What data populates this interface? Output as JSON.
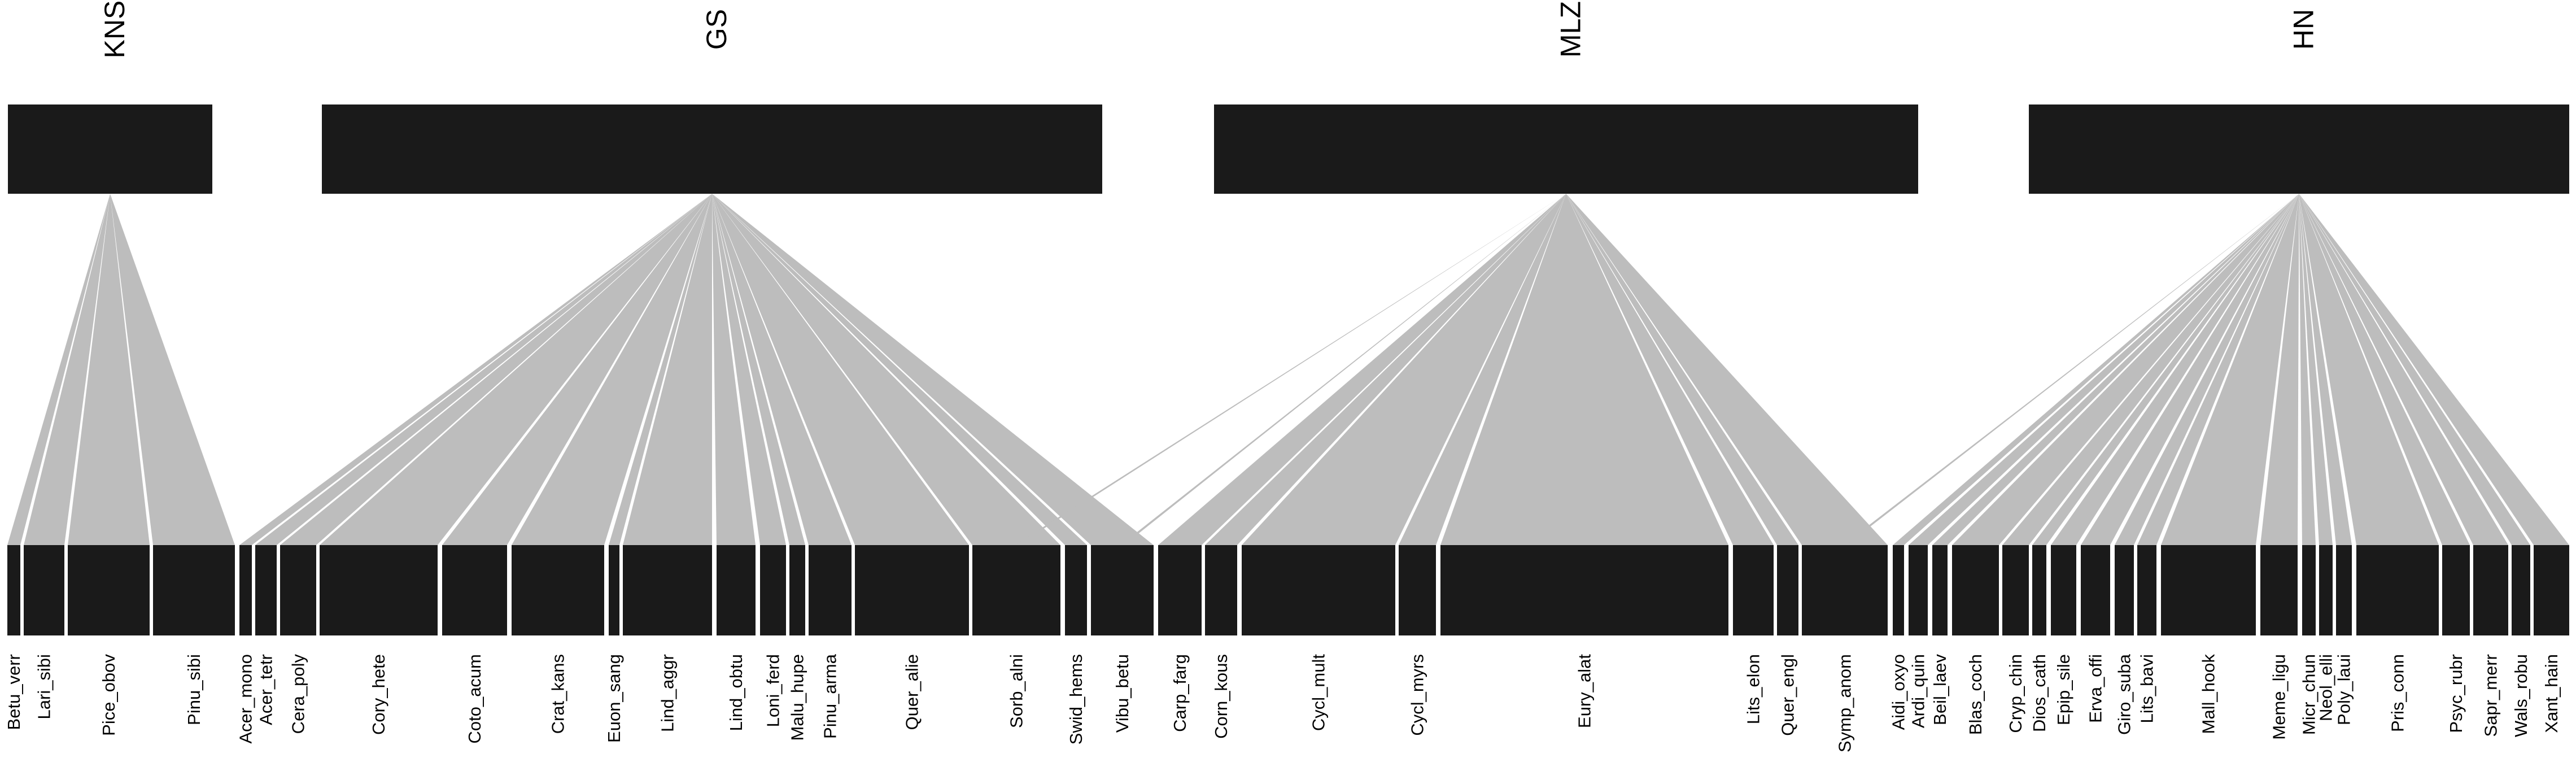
{
  "colors": {
    "box": "#1a1a1a",
    "link": "#bdbdbd",
    "background": "#ffffff",
    "text": "#000000"
  },
  "top_nodes": [
    {
      "id": "KNS",
      "label": "KNS"
    },
    {
      "id": "GS",
      "label": "GS"
    },
    {
      "id": "MLZ",
      "label": "MLZ"
    },
    {
      "id": "HN",
      "label": "HN"
    }
  ],
  "bottom_nodes": [
    {
      "label": "Betu_verr",
      "parents": [
        "KNS"
      ]
    },
    {
      "label": "Lari_sibi",
      "parents": [
        "KNS"
      ]
    },
    {
      "label": "Pice_obov",
      "parents": [
        "KNS"
      ]
    },
    {
      "label": "Pinu_sibi",
      "parents": [
        "KNS"
      ]
    },
    {
      "label": "Acer_mono",
      "parents": [
        "GS"
      ]
    },
    {
      "label": "Acer_tetr",
      "parents": [
        "GS"
      ]
    },
    {
      "label": "Cera_poly",
      "parents": [
        "GS"
      ]
    },
    {
      "label": "Cory_hete",
      "parents": [
        "GS"
      ]
    },
    {
      "label": "Coto_acum",
      "parents": [
        "GS"
      ]
    },
    {
      "label": "Crat_kans",
      "parents": [
        "GS"
      ]
    },
    {
      "label": "Euon_sang",
      "parents": [
        "GS"
      ]
    },
    {
      "label": "Lind_aggr",
      "parents": [
        "GS"
      ]
    },
    {
      "label": "Lind_obtu",
      "parents": [
        "GS"
      ]
    },
    {
      "label": "Loni_ferd",
      "parents": [
        "GS"
      ]
    },
    {
      "label": "Malu_hupe",
      "parents": [
        "GS"
      ]
    },
    {
      "label": "Pinu_arma",
      "parents": [
        "GS"
      ]
    },
    {
      "label": "Quer_alie",
      "parents": [
        "GS"
      ]
    },
    {
      "label": "Sorb_alni",
      "parents": [
        "GS"
      ]
    },
    {
      "label": "Swid_hems",
      "parents": [
        "GS"
      ]
    },
    {
      "label": "Vibu_betu",
      "parents": [
        "GS"
      ]
    },
    {
      "label": "Carp_farg",
      "parents": [
        "MLZ"
      ]
    },
    {
      "label": "Corn_kous",
      "parents": [
        "MLZ"
      ]
    },
    {
      "label": "Cycl_mult",
      "parents": [
        "MLZ"
      ]
    },
    {
      "label": "Cycl_myrs",
      "parents": [
        "MLZ"
      ]
    },
    {
      "label": "Eury_alat",
      "parents": [
        "MLZ"
      ]
    },
    {
      "label": "Lits_elon",
      "parents": [
        "MLZ"
      ]
    },
    {
      "label": "Quer_engl",
      "parents": [
        "MLZ"
      ]
    },
    {
      "label": "Symp_anom",
      "parents": [
        "MLZ"
      ]
    },
    {
      "label": "Aidi_oxyo",
      "parents": [
        "HN"
      ]
    },
    {
      "label": "Ardi_quin",
      "parents": [
        "HN"
      ]
    },
    {
      "label": "Beil_laev",
      "parents": [
        "HN"
      ]
    },
    {
      "label": "Blas_coch",
      "parents": [
        "HN"
      ]
    },
    {
      "label": "Cryp_chin",
      "parents": [
        "HN"
      ]
    },
    {
      "label": "Dios_cath",
      "parents": [
        "HN"
      ]
    },
    {
      "label": "Epip_sile",
      "parents": [
        "HN"
      ]
    },
    {
      "label": "Erva_offi",
      "parents": [
        "HN"
      ]
    },
    {
      "label": "Giro_suba",
      "parents": [
        "HN"
      ]
    },
    {
      "label": "Lits_bavi",
      "parents": [
        "HN"
      ]
    },
    {
      "label": "Mall_hook",
      "parents": [
        "HN"
      ]
    },
    {
      "label": "Meme_ligu",
      "parents": [
        "HN"
      ]
    },
    {
      "label": "Micr_chun",
      "parents": [
        "HN"
      ]
    },
    {
      "label": "Neol_elli",
      "parents": [
        "HN"
      ]
    },
    {
      "label": "Poly_laui",
      "parents": [
        "HN"
      ]
    },
    {
      "label": "Pris_conn",
      "parents": [
        "HN"
      ]
    },
    {
      "label": "Psyc_rubr",
      "parents": [
        "HN"
      ]
    },
    {
      "label": "Sapr_merr",
      "parents": [
        "HN"
      ]
    },
    {
      "label": "Wals_robu",
      "parents": [
        "HN"
      ]
    },
    {
      "label": "Xant_hain",
      "parents": [
        "HN"
      ]
    }
  ],
  "cross_links": [
    {
      "from": "MLZ",
      "to": "Sorb_alni"
    },
    {
      "from": "MLZ",
      "to": "Vibu_betu"
    },
    {
      "from": "HN",
      "to": "Symp_anom"
    }
  ]
}
